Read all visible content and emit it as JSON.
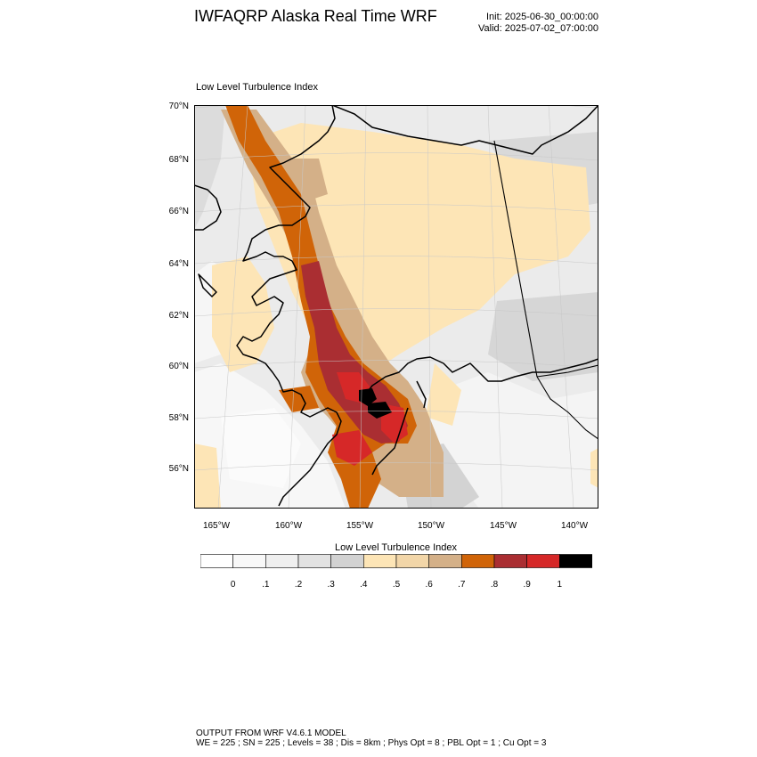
{
  "header": {
    "title": "IWFAQRP Alaska Real Time WRF",
    "init": "Init: 2025-06-30_00:00:00",
    "valid": "Valid: 2025-07-02_07:00:00"
  },
  "panel": {
    "title": "Low Level Turbulence Index",
    "lat_labels": [
      "70°N",
      "68°N",
      "66°N",
      "64°N",
      "62°N",
      "60°N",
      "58°N",
      "56°N"
    ],
    "lon_labels": [
      "165°W",
      "160°W",
      "155°W",
      "150°W",
      "145°W",
      "140°W"
    ]
  },
  "colorbar": {
    "title": "Low Level Turbulence Index",
    "tick_labels": [
      "0",
      ".1",
      ".2",
      ".3",
      ".4",
      ".5",
      ".6",
      ".7",
      ".8",
      ".9",
      "1"
    ],
    "colors": [
      "#ffffff",
      "#f8f8f8",
      "#efefef",
      "#e2e2e2",
      "#d2d2d2",
      "#fde5b6",
      "#f2d6a8",
      "#d4b088",
      "#d06408",
      "#aa2e32",
      "#d62828",
      "#000000"
    ]
  },
  "footer": {
    "line1": "OUTPUT FROM WRF V4.6.1 MODEL",
    "line2": "WE = 225 ; SN = 225 ; Levels = 38 ; Dis = 8km ; Phys Opt = 8 ; PBL Opt = 1 ; Cu Opt = 3"
  }
}
